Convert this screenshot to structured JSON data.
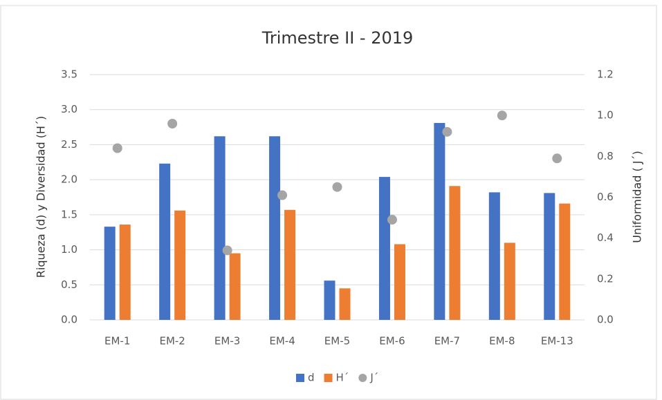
{
  "chart_data": {
    "type": "bar",
    "title": "Trimestre II - 2019",
    "ylabel": "Riqueza (d) y Diversidad (H´)",
    "y2label": "Uniformidad ( J´)",
    "categories": [
      "EM-1",
      "EM-2",
      "EM-3",
      "EM-4",
      "EM-5",
      "EM-6",
      "EM-7",
      "EM-8",
      "EM-13"
    ],
    "series": [
      {
        "name": "d",
        "color": "#4472c4",
        "values": [
          1.33,
          2.23,
          2.62,
          2.62,
          0.56,
          2.04,
          2.81,
          1.82,
          1.81
        ]
      },
      {
        "name": "H´",
        "color": "#ed7d31",
        "values": [
          1.36,
          1.56,
          0.95,
          1.57,
          0.45,
          1.08,
          1.91,
          1.1,
          1.66
        ]
      },
      {
        "name": "J´",
        "color": "#a5a5a5",
        "type": "scatter",
        "axis": "y2",
        "values": [
          0.84,
          0.96,
          0.34,
          0.61,
          0.65,
          0.49,
          0.92,
          1.0,
          0.79
        ]
      }
    ],
    "ylim": [
      0,
      3.5
    ],
    "yticks": [
      {
        "value": 0,
        "label": "0.0"
      },
      0.5,
      {
        "value": 1,
        "label": "1.0"
      },
      1.5,
      {
        "value": 2,
        "label": "2.0"
      },
      2.5,
      {
        "value": 3,
        "label": "3.0"
      },
      3.5
    ],
    "y2lim": [
      0,
      1.2
    ],
    "y2ticks": [
      {
        "value": 0,
        "label": "0.0"
      },
      0.2,
      0.4,
      0.6,
      0.8,
      {
        "value": 1,
        "label": "1.0"
      },
      1.2
    ],
    "grid": true,
    "legend": "bottom"
  }
}
